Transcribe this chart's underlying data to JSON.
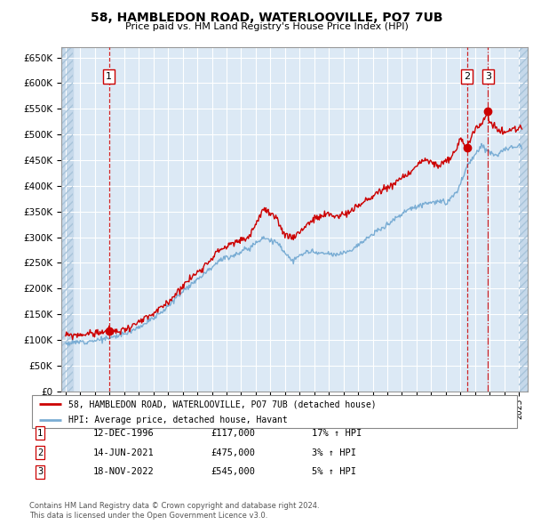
{
  "title": "58, HAMBLEDON ROAD, WATERLOOVILLE, PO7 7UB",
  "subtitle": "Price paid vs. HM Land Registry's House Price Index (HPI)",
  "ylim": [
    0,
    670000
  ],
  "yticks": [
    0,
    50000,
    100000,
    150000,
    200000,
    250000,
    300000,
    350000,
    400000,
    450000,
    500000,
    550000,
    600000,
    650000
  ],
  "ytick_labels": [
    "£0",
    "£50K",
    "£100K",
    "£150K",
    "£200K",
    "£250K",
    "£300K",
    "£350K",
    "£400K",
    "£450K",
    "£500K",
    "£550K",
    "£600K",
    "£650K"
  ],
  "xlim_start": 1993.7,
  "xlim_end": 2025.6,
  "hatch_end": 1994.5,
  "hatch_start2": 2025.0,
  "sales": [
    {
      "date": 1996.96,
      "price": 117000,
      "label": "1",
      "linestyle": "--"
    },
    {
      "date": 2021.45,
      "price": 475000,
      "label": "2",
      "linestyle": "--"
    },
    {
      "date": 2022.88,
      "price": 545000,
      "label": "3",
      "linestyle": "-."
    }
  ],
  "sale_color": "#cc0000",
  "hpi_color": "#7aadd4",
  "legend_sale_label": "58, HAMBLEDON ROAD, WATERLOOVILLE, PO7 7UB (detached house)",
  "legend_hpi_label": "HPI: Average price, detached house, Havant",
  "footnote1": "Contains HM Land Registry data © Crown copyright and database right 2024.",
  "footnote2": "This data is licensed under the Open Government Licence v3.0.",
  "table": [
    {
      "num": "1",
      "date": "12-DEC-1996",
      "price": "£117,000",
      "hpi": "17% ↑ HPI"
    },
    {
      "num": "2",
      "date": "14-JUN-2021",
      "price": "£475,000",
      "hpi": "3% ↑ HPI"
    },
    {
      "num": "3",
      "date": "18-NOV-2022",
      "price": "£545,000",
      "hpi": "5% ↑ HPI"
    }
  ],
  "bg_color": "#dce9f5",
  "grid_color": "#ffffff",
  "hatch_color": "#c5d8ea"
}
